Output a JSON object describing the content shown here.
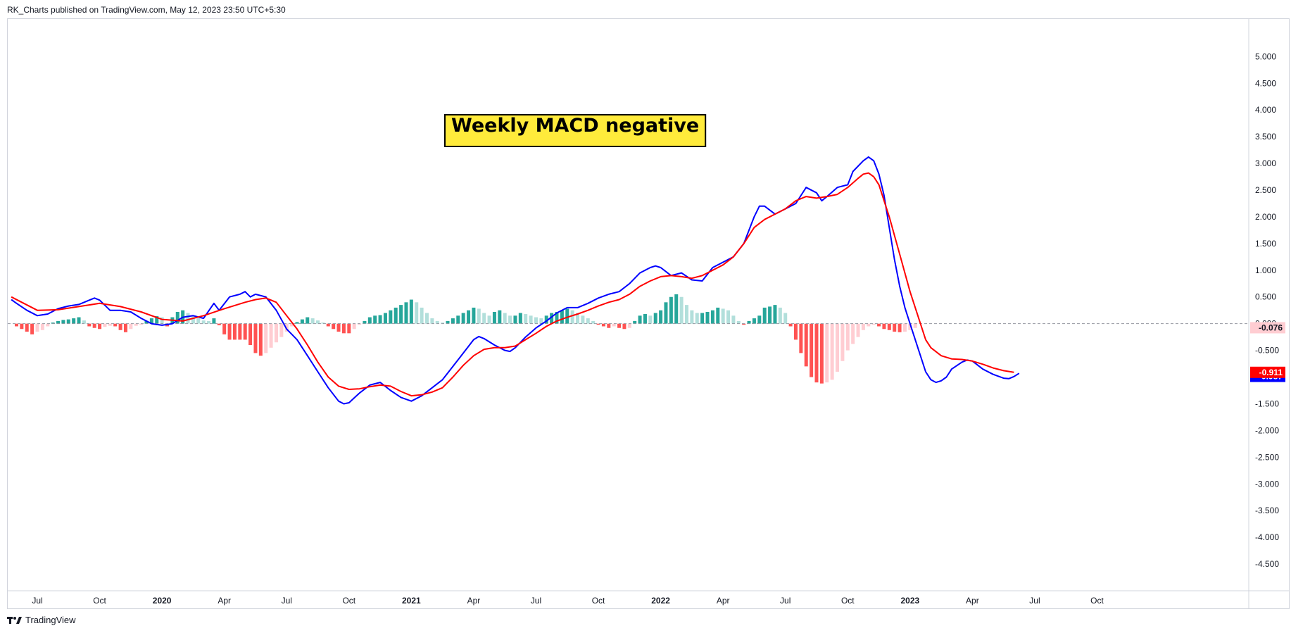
{
  "header": {
    "published_text": "RK_Charts published on TradingView.com, May 12, 2023 23:50 UTC+5:30"
  },
  "footer": {
    "brand_label": "TradingView",
    "logo_icon": "tradingview-logo-icon"
  },
  "chart_data": {
    "type": "line",
    "annotation": "Weekly MACD negative",
    "y_axis": {
      "range": [
        -5.0,
        5.4
      ],
      "ticks": [
        "5.000",
        "4.500",
        "4.000",
        "3.500",
        "3.000",
        "2.500",
        "2.000",
        "1.500",
        "1.000",
        "0.500",
        "0.000",
        "-0.500",
        "-1.000",
        "-1.500",
        "-2.000",
        "-2.500",
        "-3.000",
        "-3.500",
        "-4.000",
        "-4.500"
      ]
    },
    "x_axis": {
      "ticks": [
        {
          "label": "Jul",
          "week": 0
        },
        {
          "label": "Oct",
          "week": 12
        },
        {
          "label": "2020",
          "bold": true,
          "week": 24
        },
        {
          "label": "Apr",
          "week": 36
        },
        {
          "label": "Jul",
          "week": 48
        },
        {
          "label": "Oct",
          "week": 60
        },
        {
          "label": "2021",
          "bold": true,
          "week": 72
        },
        {
          "label": "Apr",
          "week": 84
        },
        {
          "label": "Jul",
          "week": 96
        },
        {
          "label": "Oct",
          "week": 108
        },
        {
          "label": "2022",
          "bold": true,
          "week": 120
        },
        {
          "label": "Apr",
          "week": 132
        },
        {
          "label": "Jul",
          "week": 144
        },
        {
          "label": "Oct",
          "week": 156
        },
        {
          "label": "2023",
          "bold": true,
          "week": 168
        },
        {
          "label": "Apr",
          "week": 180
        },
        {
          "label": "Jul",
          "week": 192
        },
        {
          "label": "Oct",
          "week": 204
        }
      ]
    },
    "series": [
      {
        "role": "macd",
        "color": "#0000ff",
        "last_value_label": "-0.987",
        "points": [
          [
            -5,
            0.45
          ],
          [
            -4,
            0.38
          ],
          [
            -2,
            0.25
          ],
          [
            0,
            0.15
          ],
          [
            2,
            0.18
          ],
          [
            4,
            0.28
          ],
          [
            6,
            0.33
          ],
          [
            8,
            0.36
          ],
          [
            10,
            0.44
          ],
          [
            11,
            0.48
          ],
          [
            12,
            0.44
          ],
          [
            14,
            0.25
          ],
          [
            16,
            0.25
          ],
          [
            18,
            0.22
          ],
          [
            20,
            0.1
          ],
          [
            22,
            0.0
          ],
          [
            24,
            -0.03
          ],
          [
            26,
            0.0
          ],
          [
            28,
            0.12
          ],
          [
            30,
            0.15
          ],
          [
            32,
            0.1
          ],
          [
            34,
            0.38
          ],
          [
            35,
            0.25
          ],
          [
            37,
            0.5
          ],
          [
            39,
            0.55
          ],
          [
            40,
            0.6
          ],
          [
            41,
            0.5
          ],
          [
            42,
            0.55
          ],
          [
            44,
            0.5
          ],
          [
            46,
            0.25
          ],
          [
            48,
            -0.1
          ],
          [
            50,
            -0.3
          ],
          [
            52,
            -0.6
          ],
          [
            54,
            -0.9
          ],
          [
            56,
            -1.2
          ],
          [
            58,
            -1.45
          ],
          [
            59,
            -1.5
          ],
          [
            60,
            -1.48
          ],
          [
            62,
            -1.3
          ],
          [
            64,
            -1.15
          ],
          [
            66,
            -1.1
          ],
          [
            68,
            -1.25
          ],
          [
            70,
            -1.38
          ],
          [
            72,
            -1.45
          ],
          [
            74,
            -1.35
          ],
          [
            76,
            -1.2
          ],
          [
            78,
            -1.05
          ],
          [
            80,
            -0.8
          ],
          [
            82,
            -0.55
          ],
          [
            84,
            -0.3
          ],
          [
            85,
            -0.24
          ],
          [
            86,
            -0.28
          ],
          [
            88,
            -0.4
          ],
          [
            90,
            -0.5
          ],
          [
            91,
            -0.52
          ],
          [
            92,
            -0.45
          ],
          [
            94,
            -0.25
          ],
          [
            96,
            -0.08
          ],
          [
            98,
            0.05
          ],
          [
            100,
            0.2
          ],
          [
            102,
            0.3
          ],
          [
            104,
            0.3
          ],
          [
            106,
            0.38
          ],
          [
            108,
            0.48
          ],
          [
            110,
            0.55
          ],
          [
            112,
            0.6
          ],
          [
            114,
            0.75
          ],
          [
            116,
            0.95
          ],
          [
            118,
            1.05
          ],
          [
            119,
            1.08
          ],
          [
            120,
            1.05
          ],
          [
            122,
            0.9
          ],
          [
            124,
            0.95
          ],
          [
            126,
            0.82
          ],
          [
            128,
            0.8
          ],
          [
            130,
            1.05
          ],
          [
            132,
            1.15
          ],
          [
            134,
            1.25
          ],
          [
            136,
            1.5
          ],
          [
            138,
            2.0
          ],
          [
            139,
            2.2
          ],
          [
            140,
            2.2
          ],
          [
            142,
            2.05
          ],
          [
            144,
            2.15
          ],
          [
            146,
            2.25
          ],
          [
            148,
            2.55
          ],
          [
            150,
            2.45
          ],
          [
            151,
            2.3
          ],
          [
            152,
            2.38
          ],
          [
            154,
            2.55
          ],
          [
            156,
            2.6
          ],
          [
            157,
            2.85
          ],
          [
            159,
            3.05
          ],
          [
            160,
            3.12
          ],
          [
            161,
            3.05
          ],
          [
            162,
            2.8
          ],
          [
            163,
            2.4
          ],
          [
            164,
            1.8
          ],
          [
            165,
            1.2
          ],
          [
            166,
            0.7
          ],
          [
            167,
            0.3
          ],
          [
            168,
            0.0
          ],
          [
            169,
            -0.3
          ],
          [
            170,
            -0.6
          ],
          [
            171,
            -0.9
          ],
          [
            172,
            -1.05
          ],
          [
            173,
            -1.1
          ],
          [
            174,
            -1.07
          ],
          [
            175,
            -1.0
          ],
          [
            176,
            -0.85
          ],
          [
            178,
            -0.72
          ],
          [
            179,
            -0.68
          ],
          [
            180,
            -0.7
          ],
          [
            182,
            -0.85
          ],
          [
            184,
            -0.95
          ],
          [
            186,
            -1.02
          ],
          [
            187,
            -1.03
          ],
          [
            188,
            -0.99
          ],
          [
            189,
            -0.93
          ]
        ]
      },
      {
        "role": "signal",
        "color": "#ff0000",
        "last_value_label": "-0.911",
        "points": [
          [
            -5,
            0.5
          ],
          [
            -3,
            0.4
          ],
          [
            0,
            0.25
          ],
          [
            4,
            0.26
          ],
          [
            8,
            0.32
          ],
          [
            12,
            0.38
          ],
          [
            16,
            0.32
          ],
          [
            20,
            0.22
          ],
          [
            24,
            0.08
          ],
          [
            28,
            0.05
          ],
          [
            32,
            0.15
          ],
          [
            36,
            0.28
          ],
          [
            40,
            0.4
          ],
          [
            42,
            0.45
          ],
          [
            44,
            0.48
          ],
          [
            46,
            0.4
          ],
          [
            48,
            0.15
          ],
          [
            50,
            -0.1
          ],
          [
            52,
            -0.4
          ],
          [
            54,
            -0.72
          ],
          [
            56,
            -1.0
          ],
          [
            58,
            -1.17
          ],
          [
            60,
            -1.23
          ],
          [
            62,
            -1.22
          ],
          [
            64,
            -1.18
          ],
          [
            66,
            -1.15
          ],
          [
            68,
            -1.17
          ],
          [
            70,
            -1.27
          ],
          [
            72,
            -1.35
          ],
          [
            74,
            -1.33
          ],
          [
            76,
            -1.28
          ],
          [
            78,
            -1.2
          ],
          [
            80,
            -1.0
          ],
          [
            82,
            -0.78
          ],
          [
            84,
            -0.6
          ],
          [
            86,
            -0.48
          ],
          [
            88,
            -0.45
          ],
          [
            90,
            -0.45
          ],
          [
            92,
            -0.42
          ],
          [
            94,
            -0.3
          ],
          [
            96,
            -0.18
          ],
          [
            98,
            -0.05
          ],
          [
            100,
            0.05
          ],
          [
            102,
            0.12
          ],
          [
            104,
            0.18
          ],
          [
            106,
            0.25
          ],
          [
            108,
            0.33
          ],
          [
            110,
            0.4
          ],
          [
            112,
            0.45
          ],
          [
            114,
            0.55
          ],
          [
            116,
            0.7
          ],
          [
            118,
            0.8
          ],
          [
            120,
            0.88
          ],
          [
            122,
            0.9
          ],
          [
            124,
            0.88
          ],
          [
            126,
            0.85
          ],
          [
            128,
            0.9
          ],
          [
            130,
            1.0
          ],
          [
            132,
            1.1
          ],
          [
            134,
            1.25
          ],
          [
            136,
            1.5
          ],
          [
            138,
            1.8
          ],
          [
            140,
            1.95
          ],
          [
            142,
            2.05
          ],
          [
            144,
            2.15
          ],
          [
            146,
            2.3
          ],
          [
            148,
            2.38
          ],
          [
            150,
            2.35
          ],
          [
            152,
            2.38
          ],
          [
            154,
            2.42
          ],
          [
            156,
            2.55
          ],
          [
            158,
            2.72
          ],
          [
            159,
            2.8
          ],
          [
            160,
            2.82
          ],
          [
            161,
            2.75
          ],
          [
            162,
            2.6
          ],
          [
            164,
            2.0
          ],
          [
            166,
            1.3
          ],
          [
            168,
            0.6
          ],
          [
            170,
            0.0
          ],
          [
            171,
            -0.3
          ],
          [
            172,
            -0.45
          ],
          [
            174,
            -0.6
          ],
          [
            176,
            -0.66
          ],
          [
            178,
            -0.67
          ],
          [
            180,
            -0.7
          ],
          [
            182,
            -0.76
          ],
          [
            184,
            -0.83
          ],
          [
            186,
            -0.88
          ],
          [
            188,
            -0.91
          ]
        ]
      }
    ],
    "histogram": {
      "positive_strong_color": "#26a69a",
      "positive_weak_color": "#b2dfdb",
      "negative_strong_color": "#ff5252",
      "negative_weak_color": "#ffcdd2",
      "last_value_label": "-0.076",
      "last_value_color": "#ffcdd2",
      "values": [
        -0.05,
        -0.1,
        -0.15,
        -0.2,
        -0.15,
        -0.12,
        -0.05,
        0.02,
        0.05,
        0.07,
        0.08,
        0.1,
        0.12,
        0.06,
        -0.05,
        -0.08,
        -0.1,
        -0.06,
        -0.04,
        -0.05,
        -0.12,
        -0.16,
        -0.1,
        -0.04,
        -0.02,
        0.05,
        0.1,
        0.14,
        0.12,
        -0.05,
        0.12,
        0.22,
        0.25,
        0.2,
        0.15,
        0.1,
        0.06,
        0.05,
        0.1,
        -0.03,
        -0.2,
        -0.3,
        -0.3,
        -0.3,
        -0.3,
        -0.4,
        -0.55,
        -0.6,
        -0.55,
        -0.45,
        -0.35,
        -0.25,
        -0.15,
        -0.05,
        0.03,
        0.08,
        0.12,
        0.1,
        0.06,
        0.02,
        -0.05,
        -0.1,
        -0.15,
        -0.18,
        -0.18,
        -0.1,
        -0.02,
        0.05,
        0.12,
        0.15,
        0.16,
        0.2,
        0.25,
        0.3,
        0.35,
        0.4,
        0.45,
        0.4,
        0.3,
        0.2,
        0.1,
        0.05,
        0.02,
        0.05,
        0.1,
        0.15,
        0.2,
        0.25,
        0.3,
        0.28,
        0.2,
        0.15,
        0.22,
        0.25,
        0.2,
        0.15,
        0.15,
        0.2,
        0.18,
        0.15,
        0.12,
        0.1,
        0.15,
        0.2,
        0.22,
        0.25,
        0.28,
        0.25,
        0.2,
        0.15,
        0.1,
        0.05,
        -0.02,
        -0.05,
        -0.08,
        -0.05,
        -0.08,
        -0.1,
        -0.08,
        0.05,
        0.15,
        0.18,
        0.15,
        0.2,
        0.25,
        0.4,
        0.5,
        0.55,
        0.5,
        0.35,
        0.25,
        0.2,
        0.2,
        0.22,
        0.25,
        0.3,
        0.28,
        0.25,
        0.15,
        0.05,
        -0.02,
        0.05,
        0.1,
        0.15,
        0.3,
        0.32,
        0.35,
        0.3,
        0.2,
        -0.05,
        -0.3,
        -0.55,
        -0.8,
        -1.0,
        -1.1,
        -1.12,
        -1.1,
        -1.05,
        -0.9,
        -0.7,
        -0.5,
        -0.38,
        -0.25,
        -0.12,
        -0.05,
        -0.02,
        -0.05,
        -0.1,
        -0.12,
        -0.15,
        -0.16,
        -0.15,
        -0.12,
        -0.08
      ]
    }
  }
}
